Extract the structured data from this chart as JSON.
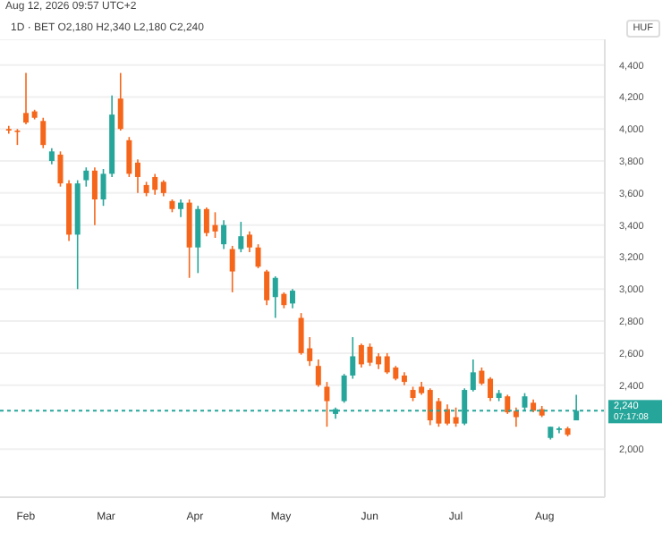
{
  "chart_data": {
    "type": "candlestick",
    "title": "1D · BET  O2,180 H2,340 L2,180 C2,240",
    "ylabel": "HUF",
    "annotations": [
      "Aug 12, 2026 09:57 UTC+2",
      "07:17:08"
    ],
    "x": [
      "2026-01-26",
      "2026-01-29",
      "2026-02-01",
      "2026-02-04",
      "2026-02-07",
      "2026-02-10",
      "2026-02-13",
      "2026-02-16",
      "2026-02-19",
      "2026-02-22",
      "2026-02-25",
      "2026-02-28",
      "2026-03-03",
      "2026-03-06",
      "2026-03-09",
      "2026-03-12",
      "2026-03-15",
      "2026-03-18",
      "2026-03-21",
      "2026-03-24",
      "2026-03-27",
      "2026-03-30",
      "2026-04-02",
      "2026-04-05",
      "2026-04-08",
      "2026-04-11",
      "2026-04-14",
      "2026-04-17",
      "2026-04-20",
      "2026-04-23",
      "2026-04-26",
      "2026-04-29",
      "2026-05-02",
      "2026-05-05",
      "2026-05-08",
      "2026-05-11",
      "2026-05-14",
      "2026-05-17",
      "2026-05-20",
      "2026-05-23",
      "2026-05-26",
      "2026-05-29",
      "2026-06-01",
      "2026-06-04",
      "2026-06-07",
      "2026-06-10",
      "2026-06-13",
      "2026-06-16",
      "2026-06-19",
      "2026-06-22",
      "2026-06-25",
      "2026-06-28",
      "2026-07-01",
      "2026-07-04",
      "2026-07-07",
      "2026-07-10",
      "2026-07-13",
      "2026-07-16",
      "2026-07-19",
      "2026-07-22",
      "2026-07-25",
      "2026-07-28",
      "2026-07-31",
      "2026-08-03",
      "2026-08-06",
      "2026-08-09",
      "2026-08-12"
    ],
    "ohlc": [
      [
        4000,
        4020,
        3970,
        3990
      ],
      [
        3990,
        4000,
        3900,
        3985
      ],
      [
        4100,
        4350,
        4030,
        4040
      ],
      [
        4110,
        4120,
        4060,
        4070
      ],
      [
        4050,
        4070,
        3880,
        3900
      ],
      [
        3800,
        3880,
        3780,
        3860
      ],
      [
        3840,
        3860,
        3640,
        3660
      ],
      [
        3660,
        3680,
        3300,
        3340
      ],
      [
        3340,
        3680,
        3000,
        3660
      ],
      [
        3680,
        3760,
        3640,
        3740
      ],
      [
        3740,
        3760,
        3400,
        3560
      ],
      [
        3560,
        3750,
        3520,
        3720
      ],
      [
        3720,
        4210,
        3700,
        4090
      ],
      [
        4190,
        4350,
        3990,
        4000
      ],
      [
        3930,
        3950,
        3700,
        3720
      ],
      [
        3790,
        3810,
        3600,
        3700
      ],
      [
        3650,
        3670,
        3580,
        3600
      ],
      [
        3700,
        3720,
        3590,
        3620
      ],
      [
        3670,
        3680,
        3580,
        3600
      ],
      [
        3550,
        3560,
        3480,
        3500
      ],
      [
        3500,
        3560,
        3450,
        3540
      ],
      [
        3540,
        3560,
        3070,
        3260
      ],
      [
        3260,
        3520,
        3100,
        3500
      ],
      [
        3500,
        3510,
        3330,
        3350
      ],
      [
        3400,
        3480,
        3320,
        3360
      ],
      [
        3280,
        3430,
        3250,
        3400
      ],
      [
        3250,
        3270,
        2980,
        3110
      ],
      [
        3250,
        3420,
        3230,
        3330
      ],
      [
        3340,
        3360,
        3230,
        3260
      ],
      [
        3260,
        3280,
        3130,
        3140
      ],
      [
        3110,
        3120,
        2900,
        2930
      ],
      [
        2950,
        3080,
        2820,
        3070
      ],
      [
        2970,
        2980,
        2880,
        2900
      ],
      [
        2910,
        3000,
        2880,
        2990
      ],
      [
        2820,
        2850,
        2590,
        2600
      ],
      [
        2630,
        2700,
        2520,
        2550
      ],
      [
        2520,
        2560,
        2390,
        2400
      ],
      [
        2390,
        2420,
        2140,
        2300
      ],
      [
        2220,
        2260,
        2190,
        2250
      ],
      [
        2300,
        2470,
        2290,
        2460
      ],
      [
        2460,
        2700,
        2440,
        2580
      ],
      [
        2650,
        2660,
        2510,
        2530
      ],
      [
        2640,
        2660,
        2520,
        2540
      ],
      [
        2580,
        2600,
        2500,
        2530
      ],
      [
        2580,
        2600,
        2470,
        2480
      ],
      [
        2510,
        2520,
        2430,
        2440
      ],
      [
        2460,
        2480,
        2400,
        2420
      ],
      [
        2370,
        2390,
        2300,
        2320
      ],
      [
        2390,
        2420,
        2340,
        2350
      ],
      [
        2370,
        2380,
        2150,
        2180
      ],
      [
        2300,
        2320,
        2140,
        2160
      ],
      [
        2250,
        2280,
        2150,
        2160
      ],
      [
        2200,
        2260,
        2140,
        2160
      ],
      [
        2160,
        2380,
        2150,
        2370
      ],
      [
        2370,
        2560,
        2360,
        2480
      ],
      [
        2490,
        2510,
        2400,
        2410
      ],
      [
        2440,
        2450,
        2300,
        2320
      ],
      [
        2320,
        2370,
        2300,
        2350
      ],
      [
        2330,
        2340,
        2220,
        2230
      ],
      [
        2240,
        2260,
        2140,
        2200
      ],
      [
        2260,
        2350,
        2240,
        2330
      ],
      [
        2290,
        2310,
        2230,
        2240
      ],
      [
        2250,
        2270,
        2200,
        2210
      ],
      [
        2070,
        2140,
        2060,
        2140
      ],
      [
        2120,
        2140,
        2100,
        2130
      ],
      [
        2130,
        2140,
        2080,
        2090
      ],
      [
        2180,
        2340,
        2180,
        2240
      ]
    ],
    "colors": [
      "#f5661b",
      "#f5661b",
      "#f5661b",
      "#f5661b",
      "#f5661b",
      "#26a69a",
      "#f5661b",
      "#f5661b",
      "#26a69a",
      "#26a69a",
      "#f5661b",
      "#26a69a",
      "#26a69a",
      "#f5661b",
      "#f5661b",
      "#f5661b",
      "#f5661b",
      "#f5661b",
      "#f5661b",
      "#f5661b",
      "#26a69a",
      "#f5661b",
      "#26a69a",
      "#f5661b",
      "#f5661b",
      "#26a69a",
      "#f5661b",
      "#26a69a",
      "#f5661b",
      "#f5661b",
      "#f5661b",
      "#26a69a",
      "#f5661b",
      "#26a69a",
      "#f5661b",
      "#f5661b",
      "#f5661b",
      "#f5661b",
      "#26a69a",
      "#26a69a",
      "#26a69a",
      "#f5661b",
      "#f5661b",
      "#f5661b",
      "#f5661b",
      "#f5661b",
      "#f5661b",
      "#f5661b",
      "#f5661b",
      "#f5661b",
      "#f5661b",
      "#f5661b",
      "#f5661b",
      "#26a69a",
      "#26a69a",
      "#f5661b",
      "#f5661b",
      "#26a69a",
      "#f5661b",
      "#f5661b",
      "#26a69a",
      "#f5661b",
      "#f5661b",
      "#26a69a",
      "#26a69a",
      "#f5661b",
      "#26a69a"
    ],
    "xlim": [
      "2026-01-23",
      "2026-08-22"
    ],
    "xticks": [
      {
        "value": "2026-02-01",
        "label": "Feb"
      },
      {
        "value": "2026-03-01",
        "label": "Mar"
      },
      {
        "value": "2026-04-01",
        "label": "Apr"
      },
      {
        "value": "2026-05-01",
        "label": "May"
      },
      {
        "value": "2026-06-01",
        "label": "Jun"
      },
      {
        "value": "2026-07-01",
        "label": "Jul"
      },
      {
        "value": "2026-08-01",
        "label": "Aug"
      }
    ],
    "ylim": [
      1700,
      4560
    ],
    "yticks": [
      {
        "value": 2000,
        "label": "2,000"
      },
      {
        "value": 2400,
        "label": "2,400"
      },
      {
        "value": 2600,
        "label": "2,600"
      },
      {
        "value": 2800,
        "label": "2,800"
      },
      {
        "value": 3000,
        "label": "3,000"
      },
      {
        "value": 3200,
        "label": "3,200"
      },
      {
        "value": 3400,
        "label": "3,400"
      },
      {
        "value": 3600,
        "label": "3,600"
      },
      {
        "value": 3800,
        "label": "3,800"
      },
      {
        "value": 4000,
        "label": "4,000"
      },
      {
        "value": 4200,
        "label": "4,200"
      },
      {
        "value": 4400,
        "label": "4,400"
      }
    ],
    "ref_lines": [
      {
        "axis": "y",
        "value": 2240,
        "label": "2,240",
        "color": "#26a69a",
        "line_style": "dashed"
      }
    ],
    "grid": "y"
  }
}
